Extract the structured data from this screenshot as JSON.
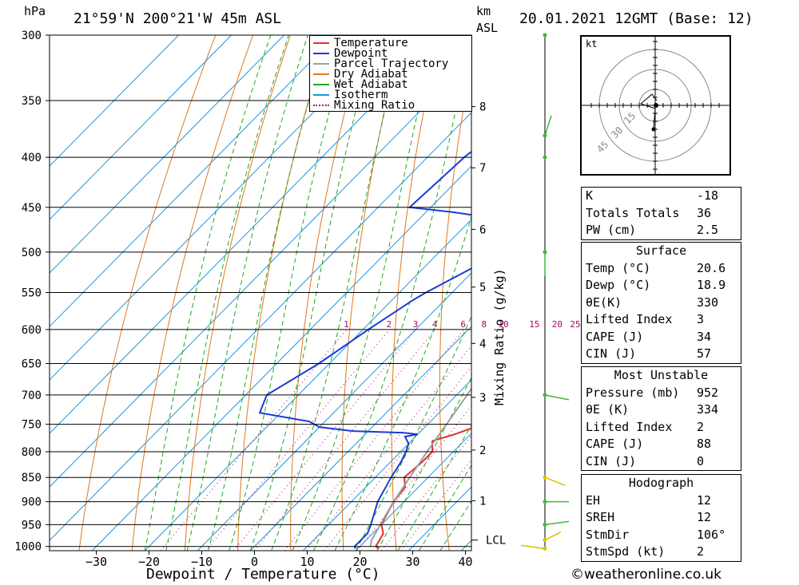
{
  "header": {
    "location": "21°59'N  200°21'W  45m  ASL",
    "datetime": "20.01.2021  12GMT  (Base: 12)",
    "pressure_unit": "hPa",
    "height_unit_top": "km",
    "height_unit_bottom": "ASL"
  },
  "legend": [
    {
      "label": "Temperature",
      "color": "#e03030",
      "style": "solid"
    },
    {
      "label": "Dewpoint",
      "color": "#1a3bd6",
      "style": "solid"
    },
    {
      "label": "Parcel Trajectory",
      "color": "#a0a0a0",
      "style": "solid"
    },
    {
      "label": "Dry Adiabat",
      "color": "#e0781e",
      "style": "solid"
    },
    {
      "label": "Wet Adiabat",
      "color": "#1fa81f",
      "style": "solid"
    },
    {
      "label": "Isotherm",
      "color": "#1e96dc",
      "style": "solid"
    },
    {
      "label": "Mixing Ratio",
      "color": "#b0006a",
      "style": "dotted"
    }
  ],
  "chart_data": {
    "type": "line",
    "title": "21°59'N  200°21'W  45m  ASL",
    "xlabel": "Dewpoint / Temperature (°C)",
    "ylabel": "hPa",
    "x_ticks": [
      "−30",
      "−20",
      "−10",
      "0",
      "10",
      "20",
      "30",
      "40"
    ],
    "x_tick_values": [
      -30,
      -20,
      -10,
      0,
      10,
      20,
      30,
      40
    ],
    "y_ticks": [
      300,
      350,
      400,
      450,
      500,
      550,
      600,
      650,
      700,
      750,
      800,
      850,
      900,
      950,
      1000
    ],
    "pressure_range": [
      1010,
      300
    ],
    "temperature_range": [
      -40,
      40
    ],
    "y_scale": "log",
    "grid": true,
    "mixing_ratio_label_text": "Mixing Ratio (g/kg)",
    "mixing_ratio_labels": [
      "1",
      "2",
      "3",
      "4",
      "6",
      "8",
      "10",
      "15",
      "20",
      "25"
    ],
    "height_axis_labels": [
      "1",
      "2",
      "3",
      "4",
      "5",
      "6",
      "7",
      "8"
    ],
    "lcl_label": "LCL",
    "series": [
      {
        "name": "Temperature",
        "color": "#e03030",
        "points": [
          [
            1005,
            24
          ],
          [
            1000,
            23
          ],
          [
            970,
            22
          ],
          [
            950,
            20
          ],
          [
            900,
            18
          ],
          [
            870,
            17.5
          ],
          [
            850,
            15.5
          ],
          [
            820,
            16
          ],
          [
            800,
            16
          ],
          [
            780,
            14
          ],
          [
            768,
            17
          ],
          [
            755,
            19.5
          ],
          [
            745,
            20
          ],
          [
            730,
            20.5
          ],
          [
            712,
            20
          ],
          [
            700,
            19
          ],
          [
            650,
            15
          ],
          [
            600,
            13
          ],
          [
            575,
            11
          ],
          [
            550,
            10
          ],
          [
            500,
            5.5
          ],
          [
            470,
            2
          ],
          [
            450,
            3
          ],
          [
            420,
            3
          ],
          [
            400,
            1
          ],
          [
            370,
            -1
          ],
          [
            350,
            -1
          ],
          [
            330,
            -2
          ],
          [
            300,
            -4
          ]
        ]
      },
      {
        "name": "Dewpoint",
        "color": "#1a3bd6",
        "points": [
          [
            1005,
            19.5
          ],
          [
            1000,
            19
          ],
          [
            970,
            19
          ],
          [
            950,
            18
          ],
          [
            900,
            15
          ],
          [
            850,
            13
          ],
          [
            820,
            12
          ],
          [
            800,
            11
          ],
          [
            785,
            10
          ],
          [
            772,
            8
          ],
          [
            768,
            10
          ],
          [
            765,
            7
          ],
          [
            762,
            -3
          ],
          [
            755,
            -10
          ],
          [
            745,
            -13
          ],
          [
            730,
            -24
          ],
          [
            700,
            -26
          ],
          [
            650,
            -22
          ],
          [
            600,
            -19
          ],
          [
            560,
            -16
          ],
          [
            550,
            -15
          ],
          [
            500,
            -8
          ],
          [
            470,
            -5
          ],
          [
            455,
            -25
          ],
          [
            450,
            -34
          ],
          [
            400,
            -33
          ],
          [
            350,
            -30
          ],
          [
            330,
            -30
          ],
          [
            300,
            -28
          ]
        ]
      },
      {
        "name": "Parcel Trajectory",
        "color": "#a0a0a0",
        "points": [
          [
            1000,
            22
          ],
          [
            985,
            21
          ],
          [
            900,
            18
          ],
          [
            800,
            15
          ],
          [
            700,
            12
          ],
          [
            600,
            8
          ],
          [
            500,
            2.5
          ],
          [
            400,
            -7
          ],
          [
            350,
            -13
          ],
          [
            300,
            -21
          ]
        ]
      }
    ]
  },
  "hodograph": {
    "unit": "kt",
    "ring_labels": [
      "15",
      "30",
      "45"
    ]
  },
  "indices": [
    {
      "key": "K",
      "value": "-18"
    },
    {
      "key": "Totals Totals",
      "value": "36"
    },
    {
      "key": "PW (cm)",
      "value": "2.5"
    }
  ],
  "surface": {
    "title": "Surface",
    "rows": [
      {
        "key": "Temp (°C)",
        "value": "20.6"
      },
      {
        "key": "Dewp (°C)",
        "value": "18.9"
      },
      {
        "key": "θE(K)",
        "value": "330"
      },
      {
        "key": "Lifted Index",
        "value": "3"
      },
      {
        "key": "CAPE (J)",
        "value": "34"
      },
      {
        "key": "CIN (J)",
        "value": "57"
      }
    ]
  },
  "most_unstable": {
    "title": "Most Unstable",
    "rows": [
      {
        "key": "Pressure (mb)",
        "value": "952"
      },
      {
        "key": "θE (K)",
        "value": "334"
      },
      {
        "key": "Lifted Index",
        "value": "2"
      },
      {
        "key": "CAPE (J)",
        "value": "88"
      },
      {
        "key": "CIN (J)",
        "value": "0"
      }
    ]
  },
  "hodograph_table": {
    "title": "Hodograph",
    "rows": [
      {
        "key": "EH",
        "value": "12"
      },
      {
        "key": "SREH",
        "value": "12"
      },
      {
        "key": "StmDir",
        "value": "106°"
      },
      {
        "key": "StmSpd (kt)",
        "value": "2"
      }
    ]
  },
  "copyright": "©weatheronline.co.uk"
}
